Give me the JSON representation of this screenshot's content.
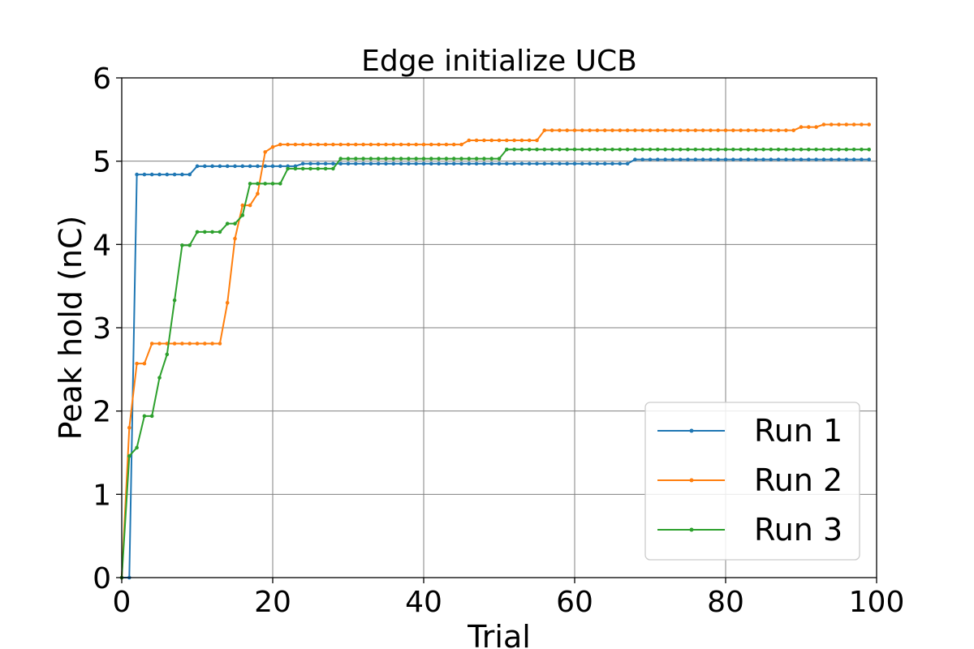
{
  "chart_data": {
    "type": "line",
    "title": "Edge initialize UCB",
    "xlabel": "Trial",
    "ylabel": "Peak hold (nC)",
    "xlim": [
      0,
      100
    ],
    "ylim": [
      0,
      6
    ],
    "x_ticks": [
      "0",
      "20",
      "40",
      "60",
      "80",
      "100"
    ],
    "y_ticks": [
      "0",
      "1",
      "2",
      "3",
      "4",
      "5",
      "6"
    ],
    "grid": true,
    "legend_position": "bottom-right",
    "series": [
      {
        "name": "Run 1",
        "color": "#1f77b4",
        "values": [
          0,
          0,
          4.84,
          4.84,
          4.84,
          4.84,
          4.84,
          4.84,
          4.84,
          4.84,
          4.94,
          4.94,
          4.94,
          4.94,
          4.94,
          4.94,
          4.94,
          4.94,
          4.94,
          4.94,
          4.94,
          4.94,
          4.94,
          4.94,
          4.97,
          4.97,
          4.97,
          4.97,
          4.97,
          4.97,
          4.97,
          4.97,
          4.97,
          4.97,
          4.97,
          4.97,
          4.97,
          4.97,
          4.97,
          4.97,
          4.97,
          4.97,
          4.97,
          4.97,
          4.97,
          4.97,
          4.97,
          4.97,
          4.97,
          4.97,
          4.97,
          4.97,
          4.97,
          4.97,
          4.97,
          4.97,
          4.97,
          4.97,
          4.97,
          4.97,
          4.97,
          4.97,
          4.97,
          4.97,
          4.97,
          4.97,
          4.97,
          4.97,
          5.02,
          5.02,
          5.02,
          5.02,
          5.02,
          5.02,
          5.02,
          5.02,
          5.02,
          5.02,
          5.02,
          5.02,
          5.02,
          5.02,
          5.02,
          5.02,
          5.02,
          5.02,
          5.02,
          5.02,
          5.02,
          5.02,
          5.02,
          5.02,
          5.02,
          5.02,
          5.02,
          5.02,
          5.02,
          5.02,
          5.02,
          5.02
        ]
      },
      {
        "name": "Run 2",
        "color": "#ff7f0e",
        "values": [
          0,
          1.8,
          2.57,
          2.57,
          2.81,
          2.81,
          2.81,
          2.81,
          2.81,
          2.81,
          2.81,
          2.81,
          2.81,
          2.81,
          3.3,
          4.07,
          4.47,
          4.47,
          4.61,
          5.11,
          5.17,
          5.2,
          5.2,
          5.2,
          5.2,
          5.2,
          5.2,
          5.2,
          5.2,
          5.2,
          5.2,
          5.2,
          5.2,
          5.2,
          5.2,
          5.2,
          5.2,
          5.2,
          5.2,
          5.2,
          5.2,
          5.2,
          5.2,
          5.2,
          5.2,
          5.2,
          5.25,
          5.25,
          5.25,
          5.25,
          5.25,
          5.25,
          5.25,
          5.25,
          5.25,
          5.25,
          5.37,
          5.37,
          5.37,
          5.37,
          5.37,
          5.37,
          5.37,
          5.37,
          5.37,
          5.37,
          5.37,
          5.37,
          5.37,
          5.37,
          5.37,
          5.37,
          5.37,
          5.37,
          5.37,
          5.37,
          5.37,
          5.37,
          5.37,
          5.37,
          5.37,
          5.37,
          5.37,
          5.37,
          5.37,
          5.37,
          5.37,
          5.37,
          5.37,
          5.37,
          5.41,
          5.41,
          5.41,
          5.44,
          5.44,
          5.44,
          5.44,
          5.44,
          5.44,
          5.44
        ]
      },
      {
        "name": "Run 3",
        "color": "#2ca02c",
        "values": [
          0,
          1.46,
          1.56,
          1.94,
          1.94,
          2.4,
          2.68,
          3.33,
          3.99,
          3.99,
          4.15,
          4.15,
          4.15,
          4.15,
          4.25,
          4.25,
          4.35,
          4.73,
          4.73,
          4.73,
          4.73,
          4.73,
          4.91,
          4.91,
          4.91,
          4.91,
          4.91,
          4.91,
          4.91,
          5.03,
          5.03,
          5.03,
          5.03,
          5.03,
          5.03,
          5.03,
          5.03,
          5.03,
          5.03,
          5.03,
          5.03,
          5.03,
          5.03,
          5.03,
          5.03,
          5.03,
          5.03,
          5.03,
          5.03,
          5.03,
          5.03,
          5.14,
          5.14,
          5.14,
          5.14,
          5.14,
          5.14,
          5.14,
          5.14,
          5.14,
          5.14,
          5.14,
          5.14,
          5.14,
          5.14,
          5.14,
          5.14,
          5.14,
          5.14,
          5.14,
          5.14,
          5.14,
          5.14,
          5.14,
          5.14,
          5.14,
          5.14,
          5.14,
          5.14,
          5.14,
          5.14,
          5.14,
          5.14,
          5.14,
          5.14,
          5.14,
          5.14,
          5.14,
          5.14,
          5.14,
          5.14,
          5.14,
          5.14,
          5.14,
          5.14,
          5.14,
          5.14,
          5.14,
          5.14,
          5.14
        ]
      }
    ]
  }
}
